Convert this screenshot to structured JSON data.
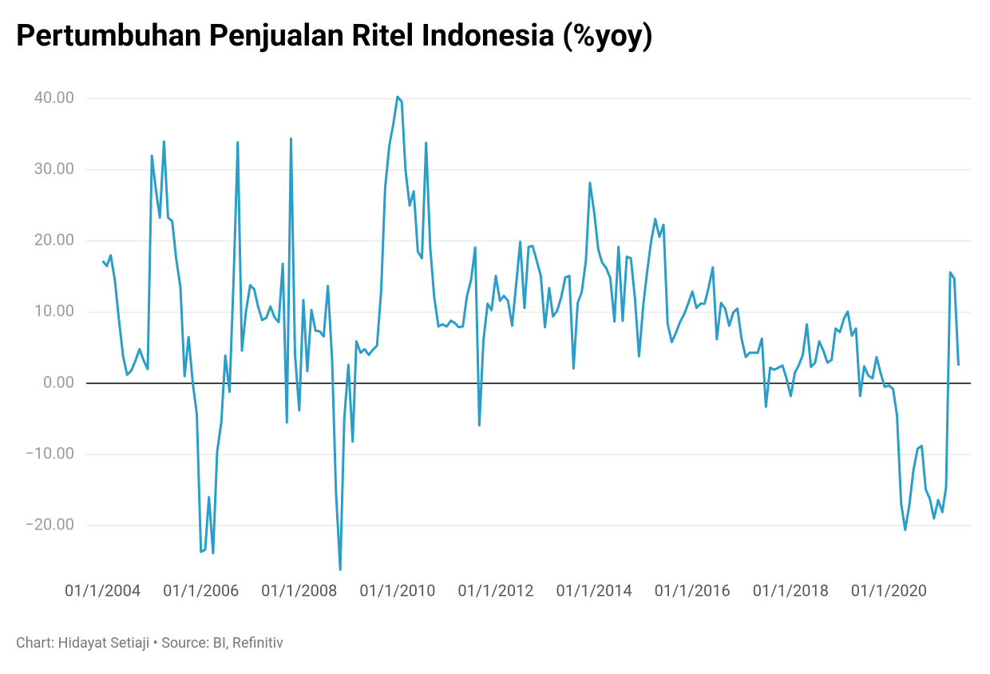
{
  "chart_data": {
    "type": "line",
    "title": "Pertumbuhan Penjualan Ritel Indonesia (%yoy)",
    "footer": "Chart: Hidayat Setiaji • Source: BI, Refinitiv",
    "x": [
      "2004-01-01",
      "2004-02-01",
      "2004-03-01",
      "2004-04-01",
      "2004-05-01",
      "2004-06-01",
      "2004-07-01",
      "2004-08-01",
      "2004-09-01",
      "2004-10-01",
      "2004-11-01",
      "2004-12-01",
      "2005-01-01",
      "2005-02-01",
      "2005-03-01",
      "2005-04-01",
      "2005-05-01",
      "2005-06-01",
      "2005-07-01",
      "2005-08-01",
      "2005-09-01",
      "2005-10-01",
      "2005-11-01",
      "2005-12-01",
      "2006-01-01",
      "2006-02-01",
      "2006-03-01",
      "2006-04-01",
      "2006-05-01",
      "2006-06-01",
      "2006-07-01",
      "2006-08-01",
      "2006-09-01",
      "2006-10-01",
      "2006-11-01",
      "2006-12-01",
      "2007-01-01",
      "2007-02-01",
      "2007-03-01",
      "2007-04-01",
      "2007-05-01",
      "2007-06-01",
      "2007-07-01",
      "2007-08-01",
      "2007-09-01",
      "2007-10-01",
      "2007-11-01",
      "2007-12-01",
      "2008-01-01",
      "2008-02-01",
      "2008-03-01",
      "2008-04-01",
      "2008-05-01",
      "2008-06-01",
      "2008-07-01",
      "2008-08-01",
      "2008-09-01",
      "2008-10-01",
      "2008-11-01",
      "2008-12-01",
      "2009-01-01",
      "2009-02-01",
      "2009-03-01",
      "2009-04-01",
      "2009-05-01",
      "2009-06-01",
      "2009-07-01",
      "2009-08-01",
      "2009-09-01",
      "2009-10-01",
      "2009-11-01",
      "2009-12-01",
      "2010-01-01",
      "2010-02-01",
      "2010-03-01",
      "2010-04-01",
      "2010-05-01",
      "2010-06-01",
      "2010-07-01",
      "2010-08-01",
      "2010-09-01",
      "2010-10-01",
      "2010-11-01",
      "2010-12-01",
      "2011-01-01",
      "2011-02-01",
      "2011-03-01",
      "2011-04-01",
      "2011-05-01",
      "2011-06-01",
      "2011-07-01",
      "2011-08-01",
      "2011-09-01",
      "2011-10-01",
      "2011-11-01",
      "2011-12-01",
      "2012-01-01",
      "2012-02-01",
      "2012-03-01",
      "2012-04-01",
      "2012-05-01",
      "2012-06-01",
      "2012-07-01",
      "2012-08-01",
      "2012-09-01",
      "2012-10-01",
      "2012-11-01",
      "2012-12-01",
      "2013-01-01",
      "2013-02-01",
      "2013-03-01",
      "2013-04-01",
      "2013-05-01",
      "2013-06-01",
      "2013-07-01",
      "2013-08-01",
      "2013-09-01",
      "2013-10-01",
      "2013-11-01",
      "2013-12-01",
      "2014-01-01",
      "2014-02-01",
      "2014-03-01",
      "2014-04-01",
      "2014-05-01",
      "2014-06-01",
      "2014-07-01",
      "2014-08-01",
      "2014-09-01",
      "2014-10-01",
      "2014-11-01",
      "2014-12-01",
      "2015-01-01",
      "2015-02-01",
      "2015-03-01",
      "2015-04-01",
      "2015-05-01",
      "2015-06-01",
      "2015-07-01",
      "2015-08-01",
      "2015-09-01",
      "2015-10-01",
      "2015-11-01",
      "2015-12-01",
      "2016-01-01",
      "2016-02-01",
      "2016-03-01",
      "2016-04-01",
      "2016-05-01",
      "2016-06-01",
      "2016-07-01",
      "2016-08-01",
      "2016-09-01",
      "2016-10-01",
      "2016-11-01",
      "2016-12-01",
      "2017-01-01",
      "2017-02-01",
      "2017-03-01",
      "2017-04-01",
      "2017-05-01",
      "2017-06-01",
      "2017-07-01",
      "2017-08-01",
      "2017-09-01",
      "2017-10-01",
      "2017-11-01",
      "2017-12-01",
      "2018-01-01",
      "2018-02-01",
      "2018-03-01",
      "2018-04-01",
      "2018-05-01",
      "2018-06-01",
      "2018-07-01",
      "2018-08-01",
      "2018-09-01",
      "2018-10-01",
      "2018-11-01",
      "2018-12-01",
      "2019-01-01",
      "2019-02-01",
      "2019-03-01",
      "2019-04-01",
      "2019-05-01",
      "2019-06-01",
      "2019-07-01",
      "2019-08-01",
      "2019-09-01",
      "2019-10-01",
      "2019-11-01",
      "2019-12-01",
      "2020-01-01",
      "2020-02-01",
      "2020-03-01",
      "2020-04-01",
      "2020-05-01",
      "2020-06-01",
      "2020-07-01",
      "2020-08-01",
      "2020-09-01",
      "2020-10-01",
      "2020-11-01",
      "2020-12-01",
      "2021-01-01",
      "2021-02-01",
      "2021-03-01",
      "2021-04-01",
      "2021-05-01",
      "2021-06-01"
    ],
    "series": [
      {
        "color": "#2a9dc8",
        "values": [
          17.2,
          16.5,
          18,
          14.5,
          9,
          3.8,
          1.2,
          1.8,
          3.2,
          4.8,
          3.2,
          2.0,
          32,
          27,
          23.3,
          34,
          23.3,
          22.8,
          17.5,
          13.5,
          1.0,
          6.5,
          0,
          -4.3,
          -23.7,
          -23.4,
          -16,
          -23.9,
          -9.6,
          -5.5,
          3.9,
          -1.2,
          15,
          33.9,
          4.6,
          10,
          13.8,
          13.2,
          10.8,
          8.9,
          9.2,
          10.8,
          9.3,
          8.6,
          16.8,
          -5.5,
          34.4,
          4,
          -3.8,
          11.7,
          1.7,
          10.3,
          7.4,
          7.3,
          6.6,
          13.7,
          3.5,
          -15.5,
          -26.2,
          -5,
          2.6,
          -8.2,
          5.9,
          4.3,
          4.8,
          4.0,
          4.7,
          5.3,
          13,
          27.5,
          33.5,
          36.5,
          40.3,
          39.6,
          30,
          25,
          27,
          18.5,
          17.6,
          33.8,
          19,
          12,
          8,
          8.3,
          8,
          8.8,
          8.5,
          7.9,
          8.0,
          12.3,
          14.5,
          19.1,
          -5.9,
          6,
          11.2,
          10.3,
          15.1,
          11.6,
          12.3,
          11.6,
          8.1,
          14,
          19.9,
          10.6,
          19.2,
          19.3,
          17.2,
          15.1,
          7.9,
          13.4,
          9.4,
          10.2,
          12.1,
          14.9,
          15.1,
          2.1,
          11.3,
          12.8,
          17.3,
          28.2,
          24.1,
          18.8,
          17,
          16.2,
          14.8,
          8.7,
          19.2,
          8.8,
          17.8,
          17.6,
          11.8,
          3.8,
          11,
          16,
          20,
          23.1,
          20.6,
          22.3,
          8.4,
          5.8,
          7.1,
          8.6,
          9.7,
          11.2,
          12.9,
          10.6,
          11.2,
          11.2,
          13.5,
          16.3,
          6.2,
          11.3,
          10.5,
          8.1,
          10,
          10.5,
          6.3,
          3.7,
          4.3,
          4.3,
          4.3,
          6.3,
          -3.3,
          2.2,
          1.9,
          2.2,
          2.5,
          0.7,
          -1.8,
          1.5,
          2.5,
          4,
          8.3,
          2.3,
          2.9,
          5.9,
          4.6,
          2.9,
          3.3,
          7.7,
          7.2,
          9.1,
          10.1,
          6.7,
          7.7,
          -1.8,
          2.4,
          1.1,
          0.7,
          3.7,
          1.4,
          -0.5,
          -0.3,
          -0.8,
          -4.5,
          -16.9,
          -20.6,
          -17.1,
          -12.3,
          -9.2,
          -8.8,
          -14.9,
          -16.3,
          -19,
          -16.4,
          -18.1,
          -14.6,
          15.6,
          14.7,
          2.5
        ]
      }
    ],
    "xlim": [
      "2003-09-01",
      "2021-09-01"
    ],
    "xticks": [
      {
        "value": "2004-01-01",
        "label": "01/1/2004"
      },
      {
        "value": "2006-01-01",
        "label": "01/1/2006"
      },
      {
        "value": "2008-01-01",
        "label": "01/1/2008"
      },
      {
        "value": "2010-01-01",
        "label": "01/1/2010"
      },
      {
        "value": "2012-01-01",
        "label": "01/1/2012"
      },
      {
        "value": "2014-01-01",
        "label": "01/1/2014"
      },
      {
        "value": "2016-01-01",
        "label": "01/1/2016"
      },
      {
        "value": "2018-01-01",
        "label": "01/1/2018"
      },
      {
        "value": "2020-01-01",
        "label": "01/1/2020"
      }
    ],
    "ylim": [
      -26.5,
      42
    ],
    "yticks": [
      {
        "value": -20,
        "label": "−20.00"
      },
      {
        "value": -10,
        "label": "−10.00"
      },
      {
        "value": 0,
        "label": "0.00"
      },
      {
        "value": 10,
        "label": "10.00"
      },
      {
        "value": 20,
        "label": "20.00"
      },
      {
        "value": 30,
        "label": "30.00"
      },
      {
        "value": 40,
        "label": "40.00"
      }
    ],
    "grid": true
  }
}
